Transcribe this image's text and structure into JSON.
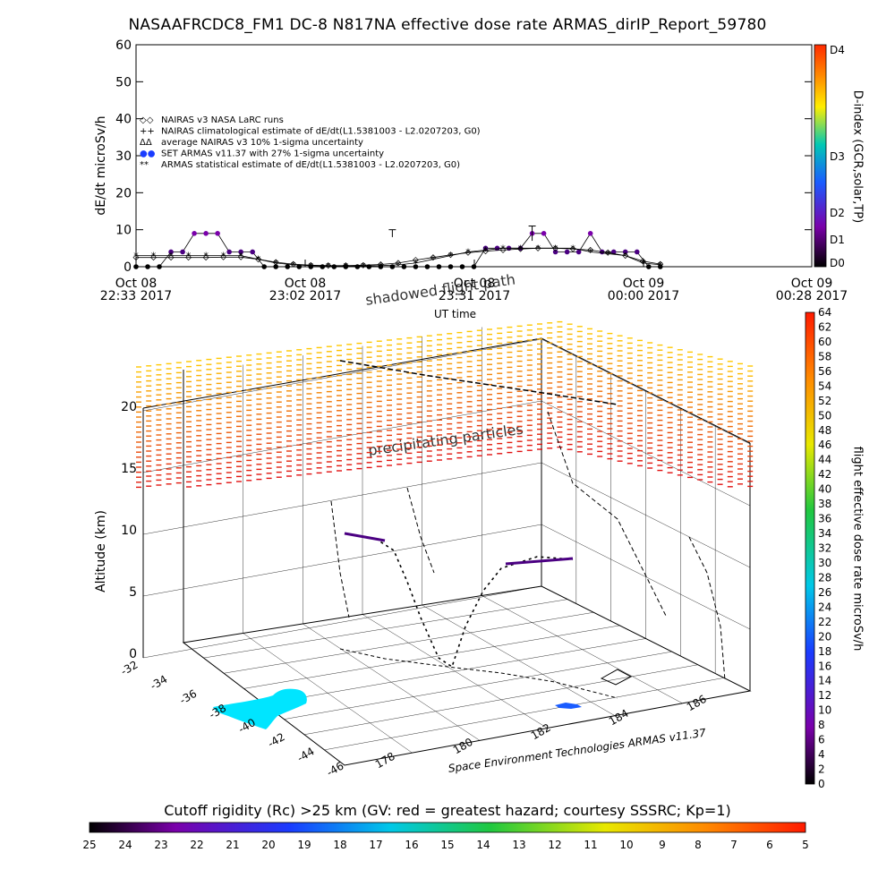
{
  "title": "NASAAFRCDC8_FM1 DC-8   N817NA effective dose rate ARMAS_dirIP_Report_59780",
  "chart_data": [
    {
      "type": "scatter",
      "ylabel": "dE/dt microSv/h",
      "xlabel": "UT time",
      "ylim": [
        0,
        60
      ],
      "yticks": [
        0,
        10,
        20,
        30,
        40,
        50,
        60
      ],
      "xticks": [
        {
          "date": "Oct 08",
          "time": "22:33 2017"
        },
        {
          "date": "Oct 08",
          "time": "23:02 2017"
        },
        {
          "date": "Oct 08",
          "time": "23:31 2017"
        },
        {
          "date": "Oct 09",
          "time": "00:00 2017"
        },
        {
          "date": "Oct 09",
          "time": "00:28 2017"
        }
      ],
      "legend": [
        "NAIRAS v3 NASA LaRC runs",
        "NAIRAS climatological estimate of dE/dt(L1.5381003 - L2.0207203, G0)",
        "average NAIRAS v3 10% 1-sigma uncertainty",
        "SET ARMAS v11.37 with 27% 1-sigma uncertainty",
        "ARMAS statistical estimate of dE/dt(L1.5381003 - L2.0207203, G0)"
      ],
      "legend_position": "upper-left",
      "series": [
        {
          "name": "SET ARMAS v11.37 with 27% 1-sigma uncertainty",
          "x_minutes": [
            0,
            2,
            4,
            6,
            8,
            10,
            12,
            14,
            16,
            18,
            20,
            22,
            24,
            26,
            28,
            30,
            32,
            34,
            36,
            38,
            40,
            42,
            44,
            46,
            48,
            50,
            52,
            54,
            56,
            58,
            60,
            62,
            64,
            66,
            68,
            70,
            72,
            74,
            76,
            78,
            80,
            82,
            84,
            86,
            88,
            90
          ],
          "values": [
            0,
            0,
            0,
            4,
            4,
            9,
            9,
            9,
            4,
            4,
            4,
            0,
            0,
            0,
            0,
            0,
            0,
            0,
            0,
            0,
            0,
            0,
            0,
            0,
            0,
            0,
            0,
            0,
            0,
            0,
            5,
            5,
            5,
            5,
            9,
            9,
            4,
            4,
            4,
            9,
            4,
            4,
            4,
            4,
            0,
            0
          ]
        },
        {
          "name": "ARMAS statistical estimate of dE/dt(L1.5381003 - L2.0207203, G0)",
          "x_minutes": [
            0,
            3,
            6,
            9,
            12,
            15,
            18,
            21,
            24,
            27,
            30,
            33,
            36,
            39,
            42,
            45,
            48,
            51,
            54,
            57,
            60,
            63,
            66,
            69,
            72,
            75,
            78,
            81,
            84,
            87,
            90
          ],
          "values": [
            3,
            3,
            3,
            3,
            3,
            3,
            3,
            2,
            1,
            0.5,
            0.3,
            0.2,
            0.2,
            0.2,
            0.3,
            0.5,
            1,
            2,
            3,
            4,
            4.5,
            5,
            5,
            5,
            5,
            5,
            4,
            3.5,
            3,
            1,
            0.5
          ]
        },
        {
          "name": "NAIRAS v3 NASA LaRC runs",
          "x_minutes": [
            0,
            3,
            6,
            9,
            12,
            15,
            18,
            21,
            24,
            27,
            30,
            33,
            36,
            39,
            42,
            45,
            48,
            51,
            54,
            57,
            60,
            63,
            66,
            69,
            72,
            75,
            78,
            81,
            84,
            87,
            90
          ],
          "values": [
            2.5,
            2.5,
            2.5,
            2.5,
            2.5,
            2.6,
            2.6,
            2,
            1.2,
            0.7,
            0.4,
            0.3,
            0.3,
            0.4,
            0.6,
            1,
            1.8,
            2.5,
            3.2,
            3.8,
            4.2,
            4.5,
            4.8,
            5,
            5,
            4.8,
            4.5,
            3.8,
            3,
            1.5,
            0.7
          ]
        }
      ],
      "colorbar": {
        "label": "D-index (GCR,solar,TP)",
        "ticks": [
          "D0",
          "D1",
          "D2",
          "D3",
          "D4"
        ],
        "range": [
          0,
          4
        ],
        "colors": [
          "#000000",
          "#7a00aa",
          "#1a5cff",
          "#ffee00",
          "#ff2a00"
        ]
      }
    },
    {
      "type": "scatter3d",
      "zlabel": "Altitude (km)",
      "zlim": [
        0,
        20
      ],
      "zticks": [
        0,
        5,
        10,
        15,
        20
      ],
      "lat_ticks": [
        -32,
        -34,
        -36,
        -38,
        -40,
        -42,
        -44,
        -46
      ],
      "lon_ticks": [
        178,
        180,
        182,
        184,
        186
      ],
      "annotations": [
        "shadowed flight path",
        "precipitating particles"
      ],
      "credit": "Space Environment Technologies ARMAS v11.37",
      "colorbar": {
        "label": "flight effective dose rate microSv/h",
        "range": [
          0,
          64
        ],
        "ticks": [
          0,
          2,
          4,
          6,
          8,
          10,
          12,
          14,
          16,
          18,
          20,
          22,
          24,
          26,
          28,
          30,
          32,
          34,
          36,
          38,
          40,
          42,
          44,
          46,
          48,
          50,
          52,
          54,
          56,
          58,
          60,
          62,
          64
        ]
      }
    },
    {
      "type": "colorbar",
      "title": "Cutoff rigidity (Rc) >25 km (GV: red = greatest hazard; courtesy SSSRC; Kp=1)",
      "ticks": [
        25,
        24,
        23,
        22,
        21,
        20,
        19,
        18,
        17,
        16,
        15,
        14,
        13,
        12,
        11,
        10,
        9,
        8,
        7,
        6,
        5
      ]
    }
  ],
  "colors": {
    "series_armas": "#4b0082",
    "precip_field_top": "#f0c800",
    "precip_field_bottom": "#e01010",
    "land": "#00e5ff"
  }
}
